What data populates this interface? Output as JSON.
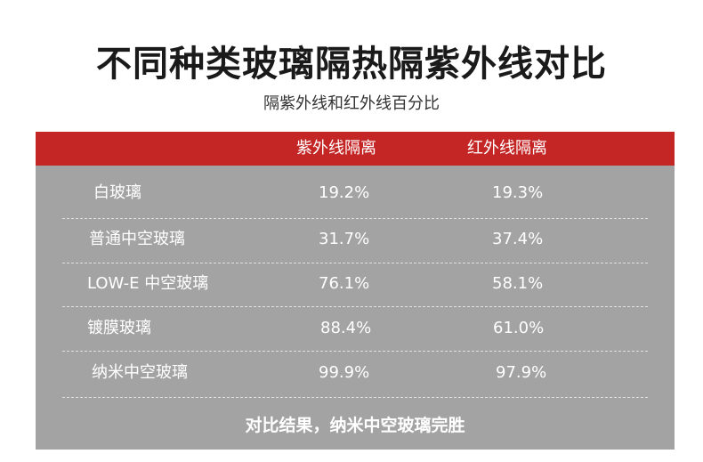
{
  "title": "不同种类玻璃隔热隔紫外线对比",
  "subtitle": "隔紫外线和红外线百分比",
  "table": {
    "headers": [
      "",
      "紫外线隔离",
      "红外线隔离"
    ],
    "rows": [
      {
        "name": "白玻璃",
        "uv": "19.2%",
        "ir": "19.3%"
      },
      {
        "name": "普通中空玻璃",
        "uv": "31.7%",
        "ir": "37.4%"
      },
      {
        "name": "LOW-E 中空玻璃",
        "uv": "76.1%",
        "ir": "58.1%"
      },
      {
        "name": "镀膜玻璃",
        "uv": "88.4%",
        "ir": "61.0%"
      },
      {
        "name": "纳米中空玻璃",
        "uv": "99.9%",
        "ir": "97.9%"
      }
    ]
  },
  "conclusion": "对比结果，纳米中空玻璃完胜",
  "colors": {
    "header_red": "#c42525",
    "table_gray": "#a3a3a3",
    "text_white": "#ffffff"
  }
}
